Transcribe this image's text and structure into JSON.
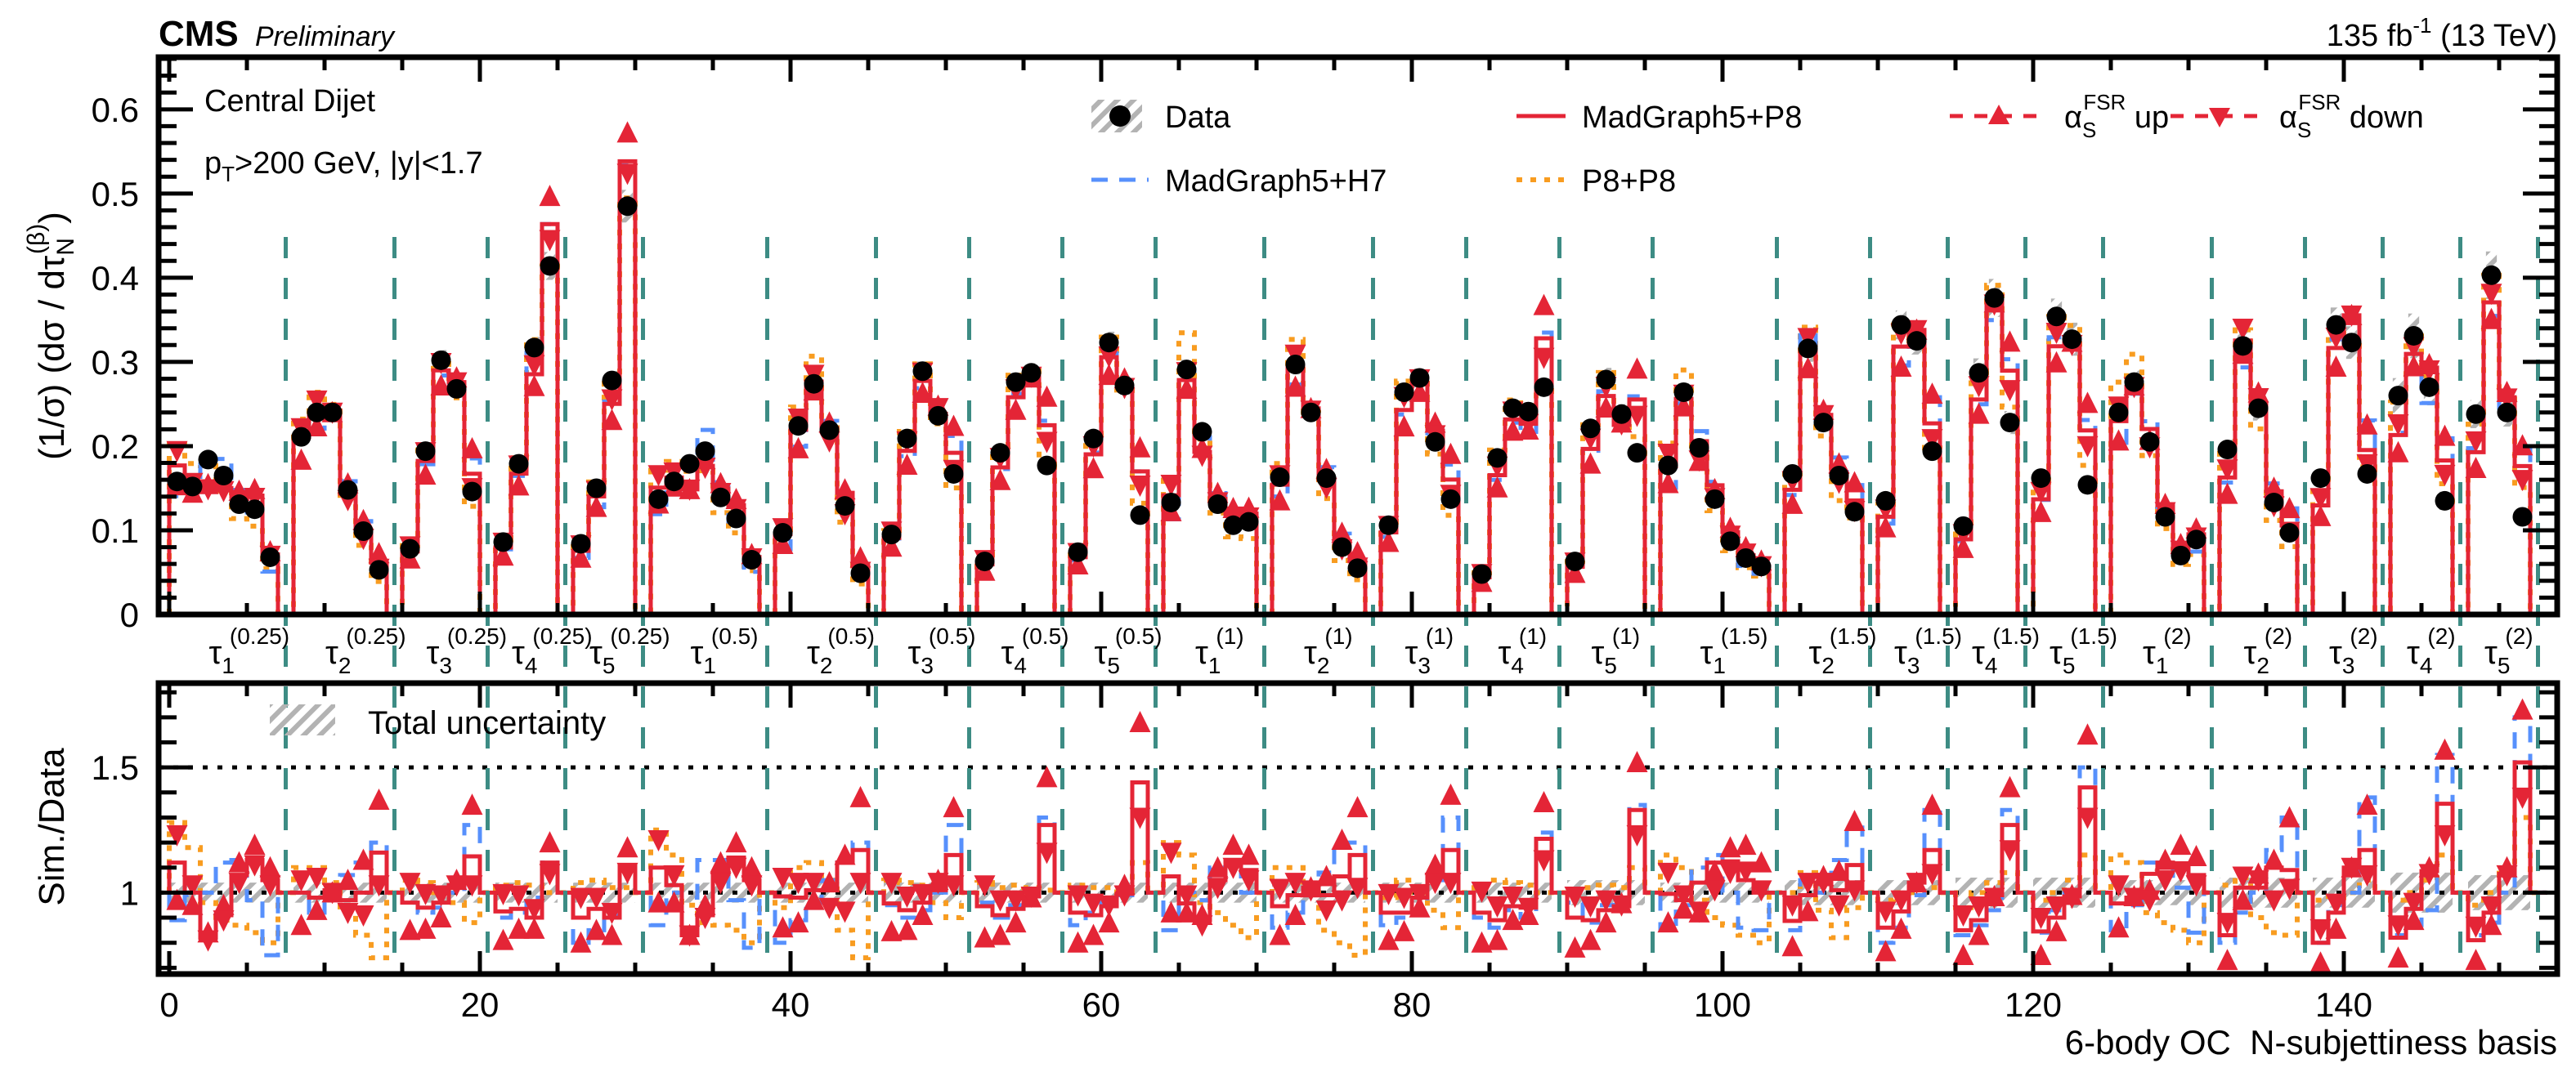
{
  "header": {
    "experiment": "CMS",
    "status": "Preliminary",
    "lumi_value": "135 fb",
    "lumi_exp": "-1",
    "energy": " (13 TeV)"
  },
  "annotation": {
    "line1": "Central Dijet",
    "pt_p": "p",
    "pt_sub": "T",
    "line2_rest": ">200 GeV, |y|<1.7"
  },
  "legend": {
    "data": "Data",
    "mg5_p8": "MadGraph5+P8",
    "alpha": "α",
    "alpha_sub": "S",
    "alpha_sup": "FSR",
    "up": " up",
    "down": " down",
    "mg5_h7": "MadGraph5+H7",
    "p8_p8": "P8+P8",
    "total_uncertainty": "Total uncertainty"
  },
  "colors": {
    "mg5_p8": "#e42536",
    "mg5_h7": "#5790fc",
    "p8_p8": "#f89c20",
    "data": "#000000",
    "separator": "#3d8c84",
    "uncertainty": "#b3b3b3"
  },
  "chart_data": [
    {
      "type": "line",
      "panel": "main",
      "ylabel_main": "(1/σ) (dσ / dτ",
      "ylabel_sub": "N",
      "ylabel_sup": "(β)",
      "ylabel_close": ")",
      "ylim": [
        0,
        0.66
      ],
      "yticks": [
        "0",
        "0.1",
        "0.2",
        "0.3",
        "0.4",
        "0.5",
        "0.6"
      ],
      "ytick_values": [
        0,
        0.1,
        0.2,
        0.3,
        0.4,
        0.5,
        0.6
      ],
      "legend_placement": "top-right"
    },
    {
      "type": "line",
      "panel": "ratio",
      "ylabel": "Sim./Data",
      "ylim": [
        0.675,
        1.83
      ],
      "yticks": [
        "1",
        "1.5"
      ],
      "ytick_values": [
        1,
        1.5
      ],
      "reference_lines": [
        1,
        1.5
      ],
      "xlabel": "6-body OC  N-subjettiness basis",
      "xlim": [
        -0.9,
        153.7
      ],
      "xticks": [
        "0",
        "20",
        "40",
        "60",
        "80",
        "100",
        "120",
        "140"
      ],
      "xtick_values": [
        0,
        20,
        40,
        60,
        80,
        100,
        120,
        140
      ],
      "legend_placement": "top-left"
    }
  ],
  "groups": [
    {
      "tau": "τ",
      "n": "1",
      "beta": "(0.25)",
      "first_bin": 0,
      "unc": 0.04,
      "data": [
        0.158,
        0.152,
        0.184,
        0.165,
        0.131,
        0.125,
        0.068
      ],
      "mg5_p8": [
        1.12,
        1.0,
        0.82,
        0.91,
        1.07,
        1.13,
        1.05
      ],
      "mg5_h7": [
        0.89,
        0.99,
        1.0,
        1.12,
        1.13,
        0.97,
        0.75
      ],
      "p8_p8": [
        1.28,
        1.18,
        0.96,
        0.89,
        0.87,
        0.84,
        0.8
      ],
      "fsr_up": [
        0.97,
        0.95,
        0.84,
        0.95,
        1.12,
        1.19,
        1.1
      ],
      "fsr_down": [
        1.23,
        1.03,
        0.81,
        0.89,
        1.04,
        1.11,
        1.03
      ]
    },
    {
      "tau": "τ",
      "n": "2",
      "beta": "(0.25)",
      "first_bin": 8,
      "unc": 0.04,
      "data": [
        0.211,
        0.24,
        0.24,
        0.148,
        0.099,
        0.053
      ],
      "mg5_p8": [
        1.0,
        0.98,
        1.01,
        0.97,
        1.0,
        1.16
      ],
      "mg5_h7": [
        1.0,
        0.92,
        0.99,
        1.07,
        1.12,
        1.2
      ],
      "p8_p8": [
        1.1,
        1.1,
        1.04,
        0.93,
        0.83,
        0.74
      ],
      "fsr_up": [
        0.87,
        0.93,
        1.0,
        1.05,
        1.13,
        1.37
      ],
      "fsr_down": [
        1.05,
        1.06,
        1.0,
        0.92,
        0.91,
        1.03
      ]
    },
    {
      "tau": "τ",
      "n": "3",
      "beta": "(0.25)",
      "first_bin": 15,
      "unc": 0.04,
      "data": [
        0.078,
        0.194,
        0.302,
        0.268,
        0.146
      ],
      "mg5_p8": [
        0.96,
        0.94,
        0.96,
        1.03,
        1.145
      ],
      "mg5_h7": [
        0.96,
        0.92,
        0.94,
        1.0,
        1.27
      ],
      "p8_p8": [
        1.05,
        1.04,
        1.0,
        0.96,
        0.88
      ],
      "fsr_up": [
        0.85,
        0.855,
        0.9,
        1.05,
        1.35
      ],
      "fsr_down": [
        1.04,
        0.995,
        0.99,
        1.03,
        1.03
      ]
    },
    {
      "tau": "τ",
      "n": "4",
      "beta": "(0.25)",
      "first_bin": 21,
      "unc": 0.04,
      "data": [
        0.086,
        0.179,
        0.317,
        0.414
      ],
      "mg5_p8": [
        0.925,
        0.935,
        0.9,
        1.12
      ],
      "mg5_h7": [
        0.9,
        0.92,
        0.98,
        1.12
      ],
      "p8_p8": [
        1.03,
        1.04,
        1.03,
        1.0
      ],
      "fsr_up": [
        0.81,
        0.855,
        0.855,
        1.2
      ],
      "fsr_down": [
        0.995,
        0.99,
        0.935,
        1.075
      ]
    },
    {
      "tau": "τ",
      "n": "5",
      "beta": "(0.25)",
      "first_bin": 26,
      "unc": 0.04,
      "data": [
        0.084,
        0.15,
        0.278,
        0.485
      ],
      "mg5_p8": [
        0.9,
        0.935,
        0.9,
        1.11
      ],
      "mg5_h7": [
        0.8,
        0.85,
        0.91,
        1.1
      ],
      "p8_p8": [
        1.04,
        1.05,
        1.02,
        1.02
      ],
      "fsr_up": [
        0.8,
        0.85,
        0.83,
        1.18
      ],
      "fsr_down": [
        0.98,
        0.98,
        0.92,
        1.08
      ]
    },
    {
      "tau": "τ",
      "n": "1",
      "beta": "(0.5)",
      "first_bin": 31,
      "unc": 0.04,
      "data": [
        0.137,
        0.158,
        0.179,
        0.194,
        0.139,
        0.114,
        0.065
      ],
      "mg5_p8": [
        1.1,
        1.03,
        0.83,
        0.91,
        1.075,
        1.14,
        1.05
      ],
      "mg5_h7": [
        0.87,
        1.0,
        0.98,
        1.13,
        1.13,
        0.97,
        0.78
      ],
      "p8_p8": [
        1.25,
        1.15,
        0.95,
        0.88,
        0.87,
        0.85,
        0.8
      ],
      "fsr_up": [
        0.96,
        0.96,
        0.83,
        0.95,
        1.12,
        1.2,
        1.1
      ],
      "fsr_down": [
        1.21,
        1.07,
        0.83,
        0.9,
        1.04,
        1.1,
        1.03
      ]
    },
    {
      "tau": "τ",
      "n": "2",
      "beta": "(0.5)",
      "first_bin": 39,
      "unc": 0.04,
      "data": [
        0.097,
        0.224,
        0.274,
        0.219,
        0.129,
        0.049
      ],
      "mg5_p8": [
        0.985,
        0.98,
        1.01,
        1.01,
        1.12,
        1.17
      ],
      "mg5_h7": [
        0.8,
        0.89,
        0.96,
        1.05,
        1.12,
        1.2
      ],
      "p8_p8": [
        0.94,
        1.1,
        1.12,
        1.05,
        0.85,
        0.74
      ],
      "fsr_up": [
        0.86,
        0.88,
        0.97,
        1.04,
        1.15,
        1.38
      ],
      "fsr_down": [
        1.06,
        1.04,
        1.04,
        0.94,
        0.925,
        1.04
      ]
    },
    {
      "tau": "τ",
      "n": "3",
      "beta": "(0.5)",
      "first_bin": 46,
      "unc": 0.04,
      "data": [
        0.095,
        0.209,
        0.289,
        0.236,
        0.167
      ],
      "mg5_p8": [
        0.957,
        0.93,
        0.96,
        1.01,
        1.15
      ],
      "mg5_h7": [
        0.95,
        0.9,
        0.93,
        1.0,
        1.27
      ],
      "p8_p8": [
        1.05,
        1.04,
        1.03,
        0.96,
        0.9
      ],
      "fsr_up": [
        0.845,
        0.85,
        0.91,
        1.05,
        1.34
      ],
      "fsr_down": [
        1.04,
        0.985,
        0.995,
        1.04,
        1.03
      ]
    },
    {
      "tau": "τ",
      "n": "4",
      "beta": "(0.5)",
      "first_bin": 52,
      "unc": 0.04,
      "data": [
        0.063,
        0.192,
        0.276,
        0.287,
        0.177
      ],
      "mg5_p8": [
        0.946,
        0.91,
        0.935,
        0.985,
        1.27
      ],
      "mg5_h7": [
        0.96,
        0.9,
        0.95,
        0.99,
        1.3
      ],
      "p8_p8": [
        1.04,
        1.02,
        1.03,
        1.02,
        1.01
      ],
      "fsr_up": [
        0.82,
        0.83,
        0.88,
        0.98,
        1.46
      ],
      "fsr_down": [
        1.03,
        0.97,
        0.97,
        0.985,
        1.16
      ]
    },
    {
      "tau": "τ",
      "n": "5",
      "beta": "(0.5)",
      "first_bin": 58,
      "unc": 0.04,
      "data": [
        0.074,
        0.209,
        0.323,
        0.272,
        0.118
      ],
      "mg5_p8": [
        0.92,
        0.91,
        0.946,
        0.995,
        1.44
      ],
      "mg5_h7": [
        0.87,
        0.92,
        0.96,
        0.99,
        1.44
      ],
      "p8_p8": [
        1.03,
        1.02,
        1.02,
        0.98,
        1.12
      ],
      "fsr_up": [
        0.8,
        0.83,
        0.88,
        1.03,
        1.68
      ],
      "fsr_down": [
        0.99,
        0.957,
        0.95,
        0.99,
        1.3
      ]
    },
    {
      "tau": "τ",
      "n": "1",
      "beta": "(1)",
      "first_bin": 64,
      "unc": 0.04,
      "data": [
        0.133,
        0.291,
        0.217,
        0.131,
        0.106,
        0.11
      ],
      "mg5_p8": [
        1.065,
        0.957,
        0.89,
        1.05,
        1.13,
        1.09
      ],
      "mg5_h7": [
        0.85,
        1.0,
        0.97,
        1.1,
        1.13,
        1.0
      ],
      "p8_p8": [
        1.2,
        1.15,
        0.96,
        0.92,
        0.87,
        0.82
      ],
      "fsr_up": [
        0.92,
        0.92,
        0.91,
        1.1,
        1.19,
        1.15
      ],
      "fsr_down": [
        1.16,
        0.99,
        0.87,
        1.02,
        1.1,
        1.05
      ]
    },
    {
      "tau": "τ",
      "n": "2",
      "beta": "(1)",
      "first_bin": 71,
      "unc": 0.04,
      "data": [
        0.163,
        0.297,
        0.24,
        0.162,
        0.08,
        0.055
      ],
      "mg5_p8": [
        0.946,
        0.99,
        1.02,
        0.99,
        1.065,
        1.15
      ],
      "mg5_h7": [
        0.86,
        0.92,
        1.0,
        1.08,
        1.2,
        1.2
      ],
      "p8_p8": [
        1.1,
        1.1,
        1.0,
        0.85,
        0.8,
        0.75
      ],
      "fsr_up": [
        0.83,
        0.91,
        1.02,
        1.065,
        1.21,
        1.34
      ],
      "fsr_down": [
        1.016,
        1.04,
        1.01,
        0.93,
        0.97,
        1.02
      ]
    },
    {
      "tau": "τ",
      "n": "3",
      "beta": "(1)",
      "first_bin": 78,
      "unc": 0.04,
      "data": [
        0.106,
        0.264,
        0.281,
        0.205,
        0.137
      ],
      "mg5_p8": [
        0.92,
        0.92,
        0.98,
        1.065,
        1.17
      ],
      "mg5_h7": [
        0.87,
        0.9,
        0.93,
        1.05,
        1.3
      ],
      "p8_p8": [
        0.98,
        1.05,
        1.0,
        0.93,
        0.86
      ],
      "fsr_up": [
        0.81,
        0.845,
        0.94,
        1.11,
        1.39
      ],
      "fsr_down": [
        0.995,
        0.98,
        0.995,
        1.04,
        1.04
      ]
    },
    {
      "tau": "τ",
      "n": "4",
      "beta": "(1)",
      "first_bin": 84,
      "unc": 0.04,
      "data": [
        0.048,
        0.186,
        0.245,
        0.241,
        0.27
      ],
      "mg5_p8": [
        0.92,
        0.89,
        0.946,
        0.94,
        1.215
      ],
      "mg5_h7": [
        0.9,
        0.86,
        0.93,
        0.9,
        1.24
      ],
      "p8_p8": [
        1.03,
        1.05,
        1.04,
        1.03,
        1.0
      ],
      "fsr_up": [
        0.8,
        0.81,
        0.89,
        0.91,
        1.36
      ],
      "fsr_down": [
        1.005,
        0.946,
        0.985,
        0.94,
        1.13
      ]
    },
    {
      "tau": "τ",
      "n": "5",
      "beta": "(1)",
      "first_bin": 90,
      "unc": 0.05,
      "data": [
        0.063,
        0.221,
        0.279,
        0.238,
        0.192
      ],
      "mg5_p8": [
        0.9,
        0.89,
        0.93,
        0.946,
        1.33
      ],
      "mg5_h7": [
        0.96,
        0.88,
        0.95,
        0.97,
        1.35
      ],
      "p8_p8": [
        1.0,
        1.02,
        1.03,
        1.02,
        1.1
      ],
      "fsr_up": [
        0.78,
        0.81,
        0.88,
        0.957,
        1.52
      ],
      "fsr_down": [
        0.985,
        0.946,
        0.97,
        0.95,
        1.23
      ]
    },
    {
      "tau": "τ",
      "n": "1",
      "beta": "(1.5)",
      "first_bin": 96,
      "unc": 0.04,
      "data": [
        0.177,
        0.264,
        0.198,
        0.137,
        0.087,
        0.067,
        0.057
      ],
      "mg5_p8": [
        0.995,
        0.97,
        1.04,
        1.12,
        1.125,
        1.05,
        1.0
      ],
      "mg5_h7": [
        0.85,
        0.95,
        1.1,
        1.15,
        1.0,
        0.86,
        0.85
      ],
      "p8_p8": [
        1.15,
        1.1,
        0.97,
        0.9,
        0.87,
        0.83,
        0.8
      ],
      "fsr_up": [
        0.88,
        0.935,
        0.92,
        1.085,
        1.18,
        1.19,
        1.12
      ],
      "fsr_down": [
        1.08,
        0.99,
        0.925,
        1.01,
        1.08,
        1.085,
        1.01
      ]
    },
    {
      "tau": "τ",
      "n": "2",
      "beta": "(1.5)",
      "first_bin": 104,
      "unc": 0.05,
      "data": [
        0.167,
        0.316,
        0.228,
        0.165,
        0.122
      ],
      "mg5_p8": [
        0.887,
        0.99,
        1.04,
        1.01,
        1.11
      ],
      "mg5_h7": [
        0.85,
        1.05,
        1.0,
        1.13,
        1.26
      ],
      "p8_p8": [
        1.0,
        1.08,
        0.93,
        0.82,
        0.94
      ],
      "fsr_up": [
        0.785,
        0.925,
        1.065,
        1.086,
        1.285
      ],
      "fsr_down": [
        0.95,
        1.04,
        1.04,
        0.95,
        1.01
      ]
    },
    {
      "tau": "τ",
      "n": "3",
      "beta": "(1.5)",
      "first_bin": 110,
      "unc": 0.05,
      "data": [
        0.135,
        0.344,
        0.325,
        0.194
      ],
      "mg5_p8": [
        0.86,
        0.925,
        1.04,
        1.17
      ],
      "mg5_h7": [
        0.8,
        0.86,
        0.99,
        1.33
      ],
      "p8_p8": [
        0.97,
        1.0,
        1.0,
        1.02
      ],
      "fsr_up": [
        0.765,
        0.855,
        1.04,
        1.35
      ],
      "fsr_down": [
        0.925,
        0.97,
        1.04,
        1.075
      ]
    },
    {
      "tau": "τ",
      "n": "4",
      "beta": "(1.5)",
      "first_bin": 115,
      "unc": 0.06,
      "data": [
        0.105,
        0.287,
        0.376,
        0.228
      ],
      "mg5_p8": [
        0.85,
        0.89,
        0.99,
        1.27
      ],
      "mg5_h7": [
        0.83,
        0.87,
        0.93,
        1.33
      ],
      "p8_p8": [
        0.94,
        1.0,
        1.04,
        1.08
      ],
      "fsr_up": [
        0.75,
        0.83,
        0.985,
        1.42
      ],
      "fsr_down": [
        0.91,
        0.946,
        0.98,
        1.17
      ]
    },
    {
      "tau": "τ",
      "n": "5",
      "beta": "(1.5)",
      "first_bin": 120,
      "unc": 0.06,
      "data": [
        0.162,
        0.354,
        0.327,
        0.154
      ],
      "mg5_p8": [
        0.845,
        0.9,
        0.985,
        1.42
      ],
      "mg5_h7": [
        0.84,
        0.93,
        1.0,
        1.5
      ],
      "p8_p8": [
        0.97,
        1.0,
        1.05,
        1.15
      ],
      "fsr_up": [
        0.75,
        0.845,
        0.99,
        1.63
      ],
      "fsr_down": [
        0.9,
        0.946,
        0.98,
        1.3
      ]
    },
    {
      "tau": "τ",
      "n": "1",
      "beta": "(2)",
      "first_bin": 125,
      "unc": 0.05,
      "data": [
        0.24,
        0.276,
        0.205,
        0.116,
        0.07,
        0.089
      ],
      "mg5_p8": [
        0.957,
        0.98,
        1.075,
        1.12,
        1.11,
        1.07
      ],
      "mg5_h7": [
        0.85,
        0.95,
        1.12,
        1.1,
        1.02,
        0.84
      ],
      "p8_p8": [
        1.15,
        1.12,
        0.92,
        0.88,
        0.85,
        0.8
      ],
      "fsr_up": [
        0.86,
        0.985,
        1.01,
        1.13,
        1.19,
        1.145
      ],
      "fsr_down": [
        1.03,
        0.98,
        0.97,
        1.05,
        1.086,
        1.03
      ]
    },
    {
      "tau": "τ",
      "n": "2",
      "beta": "(2)",
      "first_bin": 132,
      "unc": 0.06,
      "data": [
        0.196,
        0.319,
        0.245,
        0.133,
        0.097
      ],
      "mg5_p8": [
        0.83,
        1.02,
        1.02,
        1.1,
        1.09
      ],
      "mg5_h7": [
        0.8,
        0.92,
        1.0,
        1.17,
        1.3
      ],
      "p8_p8": [
        1.03,
        1.06,
        0.9,
        0.84,
        0.83
      ],
      "fsr_up": [
        0.73,
        0.97,
        1.075,
        1.13,
        1.3
      ],
      "fsr_down": [
        0.88,
        1.065,
        1.05,
        0.97,
        1.016
      ]
    },
    {
      "tau": "τ",
      "n": "3",
      "beta": "(2)",
      "first_bin": 138,
      "unc": 0.06,
      "data": [
        0.162,
        0.344,
        0.323,
        0.167
      ],
      "mg5_p8": [
        0.8,
        0.92,
        1.1,
        1.17
      ],
      "mg5_h7": [
        0.8,
        0.95,
        1.0,
        1.38
      ],
      "p8_p8": [
        0.97,
        0.98,
        1.0,
        1.05
      ],
      "fsr_up": [
        0.72,
        0.855,
        1.1,
        1.35
      ],
      "fsr_down": [
        0.855,
        0.957,
        1.1,
        1.07
      ]
    },
    {
      "tau": "τ",
      "n": "4",
      "beta": "(2)",
      "first_bin": 143,
      "unc": 0.08,
      "data": [
        0.26,
        0.331,
        0.27,
        0.135
      ],
      "mg5_p8": [
        0.82,
        0.935,
        1.086,
        1.355
      ],
      "mg5_h7": [
        0.83,
        0.87,
        0.93,
        1.55
      ],
      "p8_p8": [
        0.97,
        1.0,
        1.05,
        1.15
      ],
      "fsr_up": [
        0.74,
        0.89,
        1.1,
        1.57
      ],
      "fsr_down": [
        0.87,
        0.96,
        1.075,
        1.23
      ]
    },
    {
      "tau": "τ",
      "n": "5",
      "beta": "(2)",
      "first_bin": 148,
      "unc": 0.07,
      "data": [
        0.238,
        0.403,
        0.24,
        0.116
      ],
      "mg5_p8": [
        0.81,
        0.92,
        1.075,
        1.52
      ],
      "mg5_h7": [
        0.83,
        0.88,
        1.0,
        1.7
      ],
      "p8_p8": [
        0.95,
        1.0,
        1.1,
        1.3
      ],
      "fsr_up": [
        0.73,
        0.87,
        1.1,
        1.73
      ],
      "fsr_down": [
        0.865,
        0.946,
        1.07,
        1.38
      ]
    }
  ]
}
